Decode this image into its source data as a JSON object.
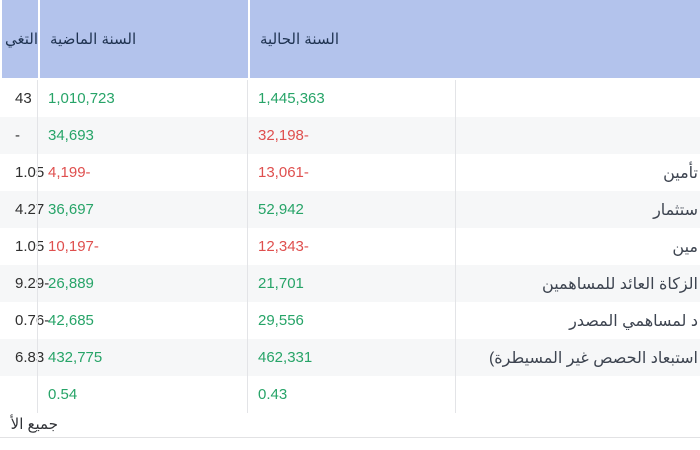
{
  "colors": {
    "header_bg": "#b3c3ec",
    "header_fg": "#1e3250",
    "stripe": "#f6f7f8",
    "positive": "#27a468",
    "negative": "#df4f4e",
    "change_fg": "#2f2f2f",
    "label_fg": "#3d4450",
    "page_bg": "#ffffff"
  },
  "table": {
    "headers": {
      "label_column": "",
      "current_year": "السنة الحالية",
      "previous_year": "السنة الماضية",
      "change": "التغي"
    },
    "rows": [
      {
        "label": "",
        "current": "1,445,363",
        "current_color": "green",
        "previous": "1,010,723",
        "previous_color": "green",
        "change": "43"
      },
      {
        "label": "",
        "current": "32,198-",
        "current_color": "red",
        "previous": "34,693",
        "previous_color": "green",
        "change": "-"
      },
      {
        "label": "تأمين",
        "current": "13,061-",
        "current_color": "red",
        "previous": "4,199-",
        "previous_color": "red",
        "change": "1.05"
      },
      {
        "label": "ستثمار",
        "current": "52,942",
        "current_color": "green",
        "previous": "36,697",
        "previous_color": "green",
        "change": "4.27"
      },
      {
        "label": "مين",
        "current": "12,343-",
        "current_color": "red",
        "previous": "10,197-",
        "previous_color": "red",
        "change": "1.05"
      },
      {
        "label": "الزكاة العائد للمساهمين",
        "current": "21,701",
        "current_color": "green",
        "previous": "26,889",
        "previous_color": "green",
        "change": "9.29-"
      },
      {
        "label": "د لمساهمي المصدر",
        "current": "29,556",
        "current_color": "green",
        "previous": "42,685",
        "previous_color": "green",
        "change": "0.76-"
      },
      {
        "label": "استبعاد الحصص غير المسيطرة)",
        "current": "462,331",
        "current_color": "green",
        "previous": "432,775",
        "previous_color": "green",
        "change": "6.83"
      },
      {
        "label": "",
        "current": "0.43",
        "current_color": "green",
        "previous": "0.54",
        "previous_color": "green",
        "change": ""
      }
    ],
    "footer_note": "جميع الأ"
  }
}
